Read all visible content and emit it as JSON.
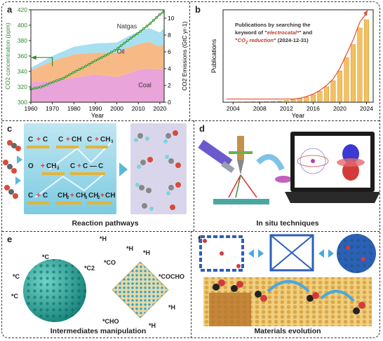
{
  "panels": {
    "a": {
      "letter": "a",
      "chart_data": {
        "type": "area",
        "title": "",
        "xlabel": "Year",
        "ylabel_left": "CO2 concentration (ppm)",
        "ylabel_right": "CO2 Emissions (GtC yr-1)",
        "x_ticks": [
          "1960",
          "1970",
          "1980",
          "1990",
          "2000",
          "2010",
          "2020"
        ],
        "y_left_ticks": [
          "300",
          "320",
          "340",
          "360",
          "380",
          "400",
          "420"
        ],
        "y_right_ticks": [
          "0",
          "2",
          "4",
          "6",
          "8",
          "10"
        ],
        "xlim": [
          1960,
          2022
        ],
        "ylim_left": [
          300,
          420
        ],
        "ylim_right": [
          0,
          11
        ],
        "series": [
          {
            "name": "Coal",
            "color": "#e79ad5",
            "x": [
              1960,
              1970,
              1980,
              1990,
              2000,
              2005,
              2010,
              2015,
              2020,
              2022
            ],
            "values": [
              2.4,
              2.5,
              2.9,
              3.3,
              3.0,
              3.4,
              3.9,
              4.0,
              3.9,
              4.0
            ]
          },
          {
            "name": "Oil",
            "color": "#f6b279",
            "x": [
              1960,
              1970,
              1980,
              1990,
              2000,
              2005,
              2010,
              2015,
              2020,
              2022
            ],
            "values": [
              1.4,
              2.4,
              2.8,
              2.6,
              2.9,
              3.1,
              3.0,
              3.2,
              2.7,
              3.0
            ]
          },
          {
            "name": "Natgas",
            "color": "#9fdcef",
            "x": [
              1960,
              1970,
              1980,
              1990,
              2000,
              2005,
              2010,
              2015,
              2020,
              2022
            ],
            "values": [
              0.3,
              0.6,
              0.9,
              1.1,
              1.2,
              1.3,
              1.5,
              1.6,
              1.7,
              1.8
            ]
          },
          {
            "name": "CO2",
            "color": "#2e8b2e",
            "x": [
              1960,
              1965,
              1970,
              1975,
              1980,
              1985,
              1990,
              1995,
              2000,
              2005,
              2010,
              2015,
              2020,
              2022
            ],
            "values": [
              317,
              320,
              326,
              331,
              339,
              346,
              354,
              361,
              369,
              380,
              390,
              401,
              414,
              418
            ]
          }
        ],
        "annotations": [
          "Natgas",
          "Oil",
          "Coal"
        ]
      }
    },
    "b": {
      "letter": "b",
      "annotation_line1": "Publications by searching the",
      "annotation_line2a": "keyword of \"",
      "annotation_em1": "electrocatal*",
      "annotation_line2b": "\" and",
      "annotation_line3a": "\"",
      "annotation_em2": "CO",
      "annotation_sub": "2",
      "annotation_em3": " reduction",
      "annotation_line3b": "\" (2024-12-31)",
      "chart_data": {
        "type": "bar",
        "title": "",
        "xlabel": "Year",
        "ylabel": "Publications",
        "x_ticks": [
          "2004",
          "2008",
          "2012",
          "2016",
          "2020",
          "2024"
        ],
        "categories": [
          2003,
          2004,
          2005,
          2006,
          2007,
          2008,
          2009,
          2010,
          2011,
          2012,
          2013,
          2014,
          2015,
          2016,
          2017,
          2018,
          2019,
          2020,
          2021,
          2022,
          2023,
          2024
        ],
        "values": [
          5,
          8,
          10,
          12,
          15,
          20,
          25,
          30,
          40,
          55,
          80,
          110,
          160,
          230,
          330,
          470,
          650,
          950,
          1350,
          1750,
          2250,
          2500
        ],
        "ylim": [
          0,
          2800
        ],
        "bar_color": "#f4c060",
        "trend_color": "#e8482e"
      }
    },
    "c": {
      "letter": "c",
      "caption": "Reaction pathways"
    },
    "d": {
      "letter": "d",
      "caption": "In situ techniques"
    },
    "e": {
      "letter": "e",
      "caption": "Intermediates manipulation",
      "labels": {
        "c2": "*C2",
        "c1a": "*C",
        "c1b": "*C",
        "c1c": "*C",
        "sub1": "1",
        "h1": "*H",
        "h2": "*H",
        "h3": "*H",
        "h4": "*H",
        "h5": "*H",
        "co": "*CO",
        "cho": "*CHO",
        "cocho": "*COCHO"
      }
    },
    "f": {
      "letter": "f",
      "caption": "Materials evolution"
    }
  },
  "colors": {
    "co2_green": "#2e8b2e",
    "border": "#333333",
    "teal": "#27a39a"
  }
}
